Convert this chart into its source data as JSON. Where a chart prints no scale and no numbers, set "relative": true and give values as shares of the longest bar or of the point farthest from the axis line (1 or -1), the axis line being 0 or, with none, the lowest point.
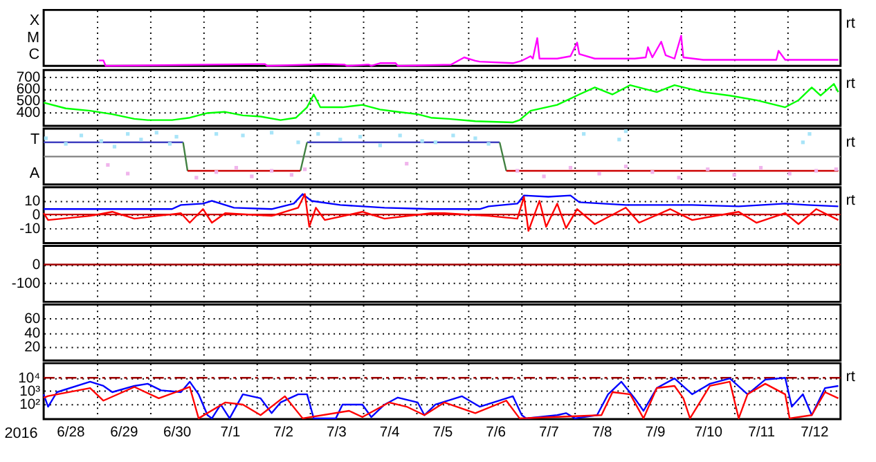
{
  "chart_data": [
    {
      "type": "line",
      "relative": true,
      "grid": "x",
      "tick_labels": false,
      "annotations": [
        "X",
        "M",
        "C",
        "rt"
      ],
      "xlim": [
        "2016-06-28T00:00",
        "2016-07-13T00:00"
      ],
      "xticks": [
        {
          "value": "2016-06-29T00:00",
          "label": null
        },
        {
          "value": "2016-06-30T00:00",
          "label": null
        },
        {
          "value": "2016-07-01T00:00",
          "label": null
        },
        {
          "value": "2016-07-02T00:00",
          "label": null
        },
        {
          "value": "2016-07-03T00:00",
          "label": null
        },
        {
          "value": "2016-07-04T00:00",
          "label": null
        },
        {
          "value": "2016-07-05T00:00",
          "label": null
        },
        {
          "value": "2016-07-06T00:00",
          "label": null
        },
        {
          "value": "2016-07-07T00:00",
          "label": null
        },
        {
          "value": "2016-07-08T00:00",
          "label": null
        },
        {
          "value": "2016-07-09T00:00",
          "label": null
        },
        {
          "value": "2016-07-10T00:00",
          "label": null
        },
        {
          "value": "2016-07-11T00:00",
          "label": null
        },
        {
          "value": "2016-07-12T00:00",
          "label": null
        }
      ],
      "series": [
        {
          "color": "#ff00ff",
          "x": [
            "2016-06-29T01:00",
            "2016-06-29T03:00",
            "2016-06-29T04:00",
            "2016-07-02T02:00",
            "2016-07-02T04:00",
            "2016-07-02T05:00",
            "2016-07-03T07:00",
            "2016-07-03T16:00",
            "2016-07-03T17:00",
            "2016-07-04T02:00",
            "2016-07-04T03:00",
            "2016-07-04T04:00",
            "2016-07-04T08:00",
            "2016-07-04T15:00",
            "2016-07-04T16:00",
            "2016-07-05T16:00",
            "2016-07-05T22:00",
            "2016-07-06T03:00",
            "2016-07-06T05:00",
            "2016-07-06T20:00",
            "2016-07-07T00:00",
            "2016-07-07T04:00",
            "2016-07-07T05:00",
            "2016-07-07T07:00",
            "2016-07-07T08:00",
            "2016-07-07T16:00",
            "2016-07-07T22:00",
            "2016-07-08T01:00",
            "2016-07-08T02:00",
            "2016-07-08T09:00",
            "2016-07-08T17:00",
            "2016-07-09T03:00",
            "2016-07-09T08:00",
            "2016-07-09T09:00",
            "2016-07-09T11:00",
            "2016-07-09T15:00",
            "2016-07-09T17:00",
            "2016-07-09T21:00",
            "2016-07-10T00:00",
            "2016-07-10T01:00",
            "2016-07-10T10:00",
            "2016-07-11T00:00",
            "2016-07-11T19:00",
            "2016-07-11T20:00",
            "2016-07-11T23:00",
            "2016-07-12T11:00",
            "2016-07-12T23:00"
          ],
          "values": [
            0.18,
            0.18,
            0,
            0.06,
            0.06,
            0,
            0.06,
            0.04,
            0,
            0.04,
            0.04,
            0,
            0.09,
            0.09,
            0,
            0.04,
            0.28,
            0.17,
            0.14,
            0.09,
            0.17,
            0.32,
            0.24,
            0.92,
            0.24,
            0.24,
            0.32,
            0.77,
            0.39,
            0.24,
            0.24,
            0.24,
            0.28,
            0.62,
            0.28,
            0.8,
            0.35,
            0.24,
            1,
            0.28,
            0.2,
            0.2,
            0.2,
            0.5,
            0.2,
            0.2,
            0.2
          ]
        }
      ]
    },
    {
      "type": "line",
      "grid": true,
      "tick_labels": "y",
      "annotations": [
        "rt"
      ],
      "xlim": [
        "2016-06-28T00:00",
        "2016-07-13T00:00"
      ],
      "xticks": [
        {
          "value": "2016-06-29T00:00",
          "label": null
        },
        {
          "value": "2016-06-30T00:00",
          "label": null
        },
        {
          "value": "2016-07-01T00:00",
          "label": null
        },
        {
          "value": "2016-07-02T00:00",
          "label": null
        },
        {
          "value": "2016-07-03T00:00",
          "label": null
        },
        {
          "value": "2016-07-04T00:00",
          "label": null
        },
        {
          "value": "2016-07-05T00:00",
          "label": null
        },
        {
          "value": "2016-07-06T00:00",
          "label": null
        },
        {
          "value": "2016-07-07T00:00",
          "label": null
        },
        {
          "value": "2016-07-08T00:00",
          "label": null
        },
        {
          "value": "2016-07-09T00:00",
          "label": null
        },
        {
          "value": "2016-07-10T00:00",
          "label": null
        },
        {
          "value": "2016-07-11T00:00",
          "label": null
        },
        {
          "value": "2016-07-12T00:00",
          "label": null
        }
      ],
      "ylim": [
        280,
        760
      ],
      "yticks": [
        400,
        500,
        600,
        700
      ],
      "series": [
        {
          "color": "#00ff00",
          "x": [
            "2016-06-28T00:00",
            "2016-06-28T10:00",
            "2016-06-28T21:00",
            "2016-06-29T07:00",
            "2016-06-29T17:00",
            "2016-06-29T23:00",
            "2016-06-30T10:00",
            "2016-06-30T18:00",
            "2016-07-01T02:00",
            "2016-07-01T10:00",
            "2016-07-01T18:00",
            "2016-07-02T02:00",
            "2016-07-02T11:00",
            "2016-07-02T18:00",
            "2016-07-02T23:00",
            "2016-07-03T02:00",
            "2016-07-03T05:00",
            "2016-07-03T15:00",
            "2016-07-04T00:00",
            "2016-07-04T08:00",
            "2016-07-04T16:00",
            "2016-07-05T01:00",
            "2016-07-05T07:00",
            "2016-07-05T15:00",
            "2016-07-06T03:00",
            "2016-07-06T20:00",
            "2016-07-06T23:00",
            "2016-07-07T04:00",
            "2016-07-07T16:00",
            "2016-07-08T02:00",
            "2016-07-08T09:00",
            "2016-07-08T17:00",
            "2016-07-09T01:00",
            "2016-07-09T13:00",
            "2016-07-09T21:00",
            "2016-07-10T10:00",
            "2016-07-10T22:00",
            "2016-07-11T10:00",
            "2016-07-11T23:00",
            "2016-07-12T05:00",
            "2016-07-12T11:00",
            "2016-07-12T15:00",
            "2016-07-12T21:00",
            "2016-07-12T23:00"
          ],
          "values": [
            480,
            430,
            410,
            380,
            340,
            330,
            330,
            350,
            390,
            400,
            370,
            360,
            330,
            350,
            440,
            550,
            440,
            440,
            460,
            420,
            400,
            380,
            350,
            340,
            320,
            310,
            330,
            410,
            460,
            550,
            610,
            550,
            630,
            570,
            630,
            570,
            540,
            500,
            440,
            500,
            610,
            540,
            640,
            570
          ]
        }
      ]
    },
    {
      "type": "scatter",
      "relative": true,
      "grid": "x",
      "tick_labels": false,
      "annotations": [
        "T",
        "A",
        "rt"
      ],
      "xlim": [
        "2016-06-28T00:00",
        "2016-07-13T00:00"
      ],
      "xticks": [
        {
          "value": "2016-06-29T00:00",
          "label": null
        },
        {
          "value": "2016-06-30T00:00",
          "label": null
        },
        {
          "value": "2016-07-01T00:00",
          "label": null
        },
        {
          "value": "2016-07-02T00:00",
          "label": null
        },
        {
          "value": "2016-07-03T00:00",
          "label": null
        },
        {
          "value": "2016-07-04T00:00",
          "label": null
        },
        {
          "value": "2016-07-05T00:00",
          "label": null
        },
        {
          "value": "2016-07-06T00:00",
          "label": null
        },
        {
          "value": "2016-07-07T00:00",
          "label": null
        },
        {
          "value": "2016-07-08T00:00",
          "label": null
        },
        {
          "value": "2016-07-09T00:00",
          "label": null
        },
        {
          "value": "2016-07-10T00:00",
          "label": null
        },
        {
          "value": "2016-07-11T00:00",
          "label": null
        },
        {
          "value": "2016-07-12T00:00",
          "label": null
        }
      ],
      "ref_lines": [
        {
          "axis": "y",
          "value": 0,
          "color": "#808080"
        }
      ],
      "series": [
        {
          "color": "#a8e4f8",
          "x": [
            "2016-06-28T01:00",
            "2016-06-28T10:00",
            "2016-06-28T17:00",
            "2016-06-29T02:00",
            "2016-06-29T08:00",
            "2016-06-29T14:00",
            "2016-06-29T20:00",
            "2016-06-30T03:00",
            "2016-06-30T09:00",
            "2016-06-30T12:00",
            "2016-07-01T06:00",
            "2016-07-01T18:00",
            "2016-07-02T07:00",
            "2016-07-02T19:00",
            "2016-07-03T04:00",
            "2016-07-03T14:00",
            "2016-07-03T23:00",
            "2016-07-04T08:00",
            "2016-07-04T17:00",
            "2016-07-05T03:00",
            "2016-07-05T09:00",
            "2016-07-05T17:00",
            "2016-07-06T03:00",
            "2016-07-06T09:00",
            "2016-07-08T04:00",
            "2016-07-08T20:00",
            "2016-07-08T23:00",
            "2016-07-12T07:00",
            "2016-07-12T10:00"
          ],
          "values": [
            0.72,
            0.5,
            0.83,
            0.61,
            0.39,
            0.89,
            0.67,
            0.94,
            0.5,
            0.78,
            0.89,
            0.83,
            0.94,
            0.56,
            0.89,
            0.67,
            0.78,
            0.44,
            0.83,
            0.61,
            0.56,
            0.83,
            0.72,
            0.5,
            0.89,
            0.67,
            1,
            0.56,
            0.89
          ]
        },
        {
          "color": "#f0b4ec",
          "x": [
            "2016-06-29T05:00",
            "2016-06-29T14:00",
            "2016-06-30T21:00",
            "2016-07-01T06:00",
            "2016-07-01T15:00",
            "2016-07-01T22:00",
            "2016-07-02T07:00",
            "2016-07-02T16:00",
            "2016-07-02T22:00",
            "2016-07-04T20:00",
            "2016-07-06T22:00",
            "2016-07-07T10:00",
            "2016-07-07T22:00",
            "2016-07-08T11:00",
            "2016-07-08T23:00",
            "2016-07-09T11:00",
            "2016-07-09T23:00",
            "2016-07-10T12:00",
            "2016-07-11T00:00",
            "2016-07-11T12:00",
            "2016-07-12T01:00",
            "2016-07-12T13:00",
            "2016-07-12T22:00"
          ],
          "values": [
            -0.33,
            -0.67,
            -0.83,
            -0.61,
            -0.44,
            -0.78,
            -0.56,
            -0.72,
            -0.5,
            -0.28,
            -0.56,
            -0.78,
            -0.44,
            -0.67,
            -0.39,
            -0.61,
            -0.83,
            -0.5,
            -0.72,
            -0.44,
            -0.67,
            -0.56,
            -0.5
          ]
        },
        {
          "type": "line",
          "color": "#4040c0",
          "x": [
            "2016-06-28T00:00",
            "2016-06-30T15:00",
            "2016-06-30T16:00",
            "2016-07-02T23:00",
            "2016-07-06T14:00"
          ],
          "values": [
            0.56,
            0.56,
            null,
            0.56,
            0.56
          ]
        },
        {
          "type": "line",
          "color": "#408040",
          "x": [
            "2016-06-30T15:00",
            "2016-06-30T17:00",
            "2016-06-30T18:00",
            "2016-07-02T20:00",
            "2016-07-02T23:00",
            "2016-07-03T00:00",
            "2016-07-06T14:00",
            "2016-07-06T17:00"
          ],
          "values": [
            0.56,
            -0.56,
            null,
            -0.56,
            0.56,
            null,
            0.56,
            -0.56
          ]
        },
        {
          "type": "line",
          "color": "#cc0000",
          "x": [
            "2016-06-30T17:00",
            "2016-07-02T20:00",
            "2016-07-02T21:00",
            "2016-07-06T17:00",
            "2016-07-12T23:00"
          ],
          "values": [
            -0.56,
            -0.56,
            null,
            -0.56,
            -0.56
          ]
        }
      ]
    },
    {
      "type": "line",
      "grid": true,
      "tick_labels": "y",
      "annotations": [
        "rt"
      ],
      "xlim": [
        "2016-06-28T00:00",
        "2016-07-13T00:00"
      ],
      "xticks": [
        {
          "value": "2016-06-29T00:00",
          "label": null
        },
        {
          "value": "2016-06-30T00:00",
          "label": null
        },
        {
          "value": "2016-07-01T00:00",
          "label": null
        },
        {
          "value": "2016-07-02T00:00",
          "label": null
        },
        {
          "value": "2016-07-03T00:00",
          "label": null
        },
        {
          "value": "2016-07-04T00:00",
          "label": null
        },
        {
          "value": "2016-07-05T00:00",
          "label": null
        },
        {
          "value": "2016-07-06T00:00",
          "label": null
        },
        {
          "value": "2016-07-07T00:00",
          "label": null
        },
        {
          "value": "2016-07-08T00:00",
          "label": null
        },
        {
          "value": "2016-07-09T00:00",
          "label": null
        },
        {
          "value": "2016-07-10T00:00",
          "label": null
        },
        {
          "value": "2016-07-11T00:00",
          "label": null
        },
        {
          "value": "2016-07-12T00:00",
          "label": null
        }
      ],
      "ylim": [
        -21,
        20
      ],
      "yticks": [
        10,
        0,
        -10
      ],
      "ref_lines": [
        {
          "axis": "y",
          "value": 0,
          "color": "#cc0000"
        }
      ],
      "series": [
        {
          "color": "#0000ff",
          "x": [
            "2016-06-28T00:00",
            "2016-06-28T21:00",
            "2016-06-29T17:00",
            "2016-06-30T10:00",
            "2016-06-30T14:00",
            "2016-07-01T00:00",
            "2016-07-01T04:00",
            "2016-07-01T14:00",
            "2016-07-02T07:00",
            "2016-07-02T17:00",
            "2016-07-02T21:00",
            "2016-07-03T01:00",
            "2016-07-03T14:00",
            "2016-07-04T10:00",
            "2016-07-05T07:00",
            "2016-07-06T05:00",
            "2016-07-06T09:00",
            "2016-07-06T22:00",
            "2016-07-07T01:00",
            "2016-07-07T12:00",
            "2016-07-07T22:00",
            "2016-07-08T02:00",
            "2016-07-08T23:00",
            "2016-07-10T05:00",
            "2016-07-11T02:00",
            "2016-07-11T23:00",
            "2016-07-12T09:00",
            "2016-07-12T23:00"
          ],
          "values": [
            4,
            4,
            4,
            4,
            7,
            8,
            10,
            5,
            4,
            8,
            15,
            10,
            7,
            5,
            4,
            4,
            6,
            8,
            14,
            13,
            14,
            9,
            7,
            7,
            6,
            8,
            7,
            6
          ]
        },
        {
          "color": "#ff0000",
          "x": [
            "2016-06-28T00:00",
            "2016-06-28T02:00",
            "2016-06-28T21:00",
            "2016-06-29T07:00",
            "2016-06-29T17:00",
            "2016-06-30T14:00",
            "2016-06-30T18:00",
            "2016-07-01T00:00",
            "2016-07-01T04:00",
            "2016-07-01T10:00",
            "2016-07-02T07:00",
            "2016-07-02T19:00",
            "2016-07-02T22:00",
            "2016-07-03T00:00",
            "2016-07-03T03:00",
            "2016-07-03T07:00",
            "2016-07-04T00:00",
            "2016-07-04T10:00",
            "2016-07-05T07:00",
            "2016-07-05T13:00",
            "2016-07-06T09:00",
            "2016-07-06T22:00",
            "2016-07-07T01:00",
            "2016-07-07T03:00",
            "2016-07-07T08:00",
            "2016-07-07T11:00",
            "2016-07-07T16:00",
            "2016-07-07T20:00",
            "2016-07-08T01:00",
            "2016-07-08T09:00",
            "2016-07-08T23:00",
            "2016-07-09T05:00",
            "2016-07-09T19:00",
            "2016-07-10T05:00",
            "2016-07-11T02:00",
            "2016-07-11T10:00",
            "2016-07-11T23:00",
            "2016-07-12T05:00",
            "2016-07-12T13:00",
            "2016-07-12T23:00"
          ],
          "values": [
            1,
            -4,
            -1,
            2,
            -3,
            1,
            -6,
            4,
            -6,
            1,
            -1,
            5,
            15,
            -9,
            5,
            -4,
            2,
            -3,
            1,
            1,
            -1,
            -3,
            13,
            -12,
            10,
            -9,
            8,
            -10,
            4,
            -7,
            5,
            -6,
            4,
            -4,
            2,
            -6,
            1,
            -7,
            4,
            -4
          ]
        }
      ]
    },
    {
      "type": "line",
      "grid": true,
      "tick_labels": "y",
      "xlim": [
        "2016-06-28T00:00",
        "2016-07-13T00:00"
      ],
      "xticks": [
        {
          "value": "2016-06-29T00:00",
          "label": null
        },
        {
          "value": "2016-06-30T00:00",
          "label": null
        },
        {
          "value": "2016-07-01T00:00",
          "label": null
        },
        {
          "value": "2016-07-02T00:00",
          "label": null
        },
        {
          "value": "2016-07-03T00:00",
          "label": null
        },
        {
          "value": "2016-07-04T00:00",
          "label": null
        },
        {
          "value": "2016-07-05T00:00",
          "label": null
        },
        {
          "value": "2016-07-06T00:00",
          "label": null
        },
        {
          "value": "2016-07-07T00:00",
          "label": null
        },
        {
          "value": "2016-07-08T00:00",
          "label": null
        },
        {
          "value": "2016-07-09T00:00",
          "label": null
        },
        {
          "value": "2016-07-10T00:00",
          "label": null
        },
        {
          "value": "2016-07-11T00:00",
          "label": null
        },
        {
          "value": "2016-07-12T00:00",
          "label": null
        }
      ],
      "ylim": [
        -200,
        100
      ],
      "yticks": [
        0,
        -100
      ],
      "ref_lines": [
        {
          "axis": "y",
          "value": 0,
          "color": "#a00000"
        }
      ]
    },
    {
      "type": "line",
      "grid": true,
      "tick_labels": "y",
      "xlim": [
        "2016-06-28T00:00",
        "2016-07-13T00:00"
      ],
      "xticks": [
        {
          "value": "2016-06-29T00:00",
          "label": null
        },
        {
          "value": "2016-06-30T00:00",
          "label": null
        },
        {
          "value": "2016-07-01T00:00",
          "label": null
        },
        {
          "value": "2016-07-02T00:00",
          "label": null
        },
        {
          "value": "2016-07-03T00:00",
          "label": null
        },
        {
          "value": "2016-07-04T00:00",
          "label": null
        },
        {
          "value": "2016-07-05T00:00",
          "label": null
        },
        {
          "value": "2016-07-06T00:00",
          "label": null
        },
        {
          "value": "2016-07-07T00:00",
          "label": null
        },
        {
          "value": "2016-07-08T00:00",
          "label": null
        },
        {
          "value": "2016-07-09T00:00",
          "label": null
        },
        {
          "value": "2016-07-10T00:00",
          "label": null
        },
        {
          "value": "2016-07-11T00:00",
          "label": null
        },
        {
          "value": "2016-07-12T00:00",
          "label": null
        }
      ],
      "ylim": [
        0,
        80
      ],
      "yticks": [
        60,
        40,
        20
      ]
    },
    {
      "type": "line",
      "log": true,
      "grid": true,
      "annotations": [
        "rt"
      ],
      "xlabel": "2016",
      "xlim": [
        "2016-06-28T00:00",
        "2016-07-13T00:00"
      ],
      "xticks": [
        {
          "value": "2016-06-28T12:00",
          "label": "6/28"
        },
        {
          "value": "2016-06-29T00:00",
          "label": null
        },
        {
          "value": "2016-06-29T12:00",
          "label": "6/29"
        },
        {
          "value": "2016-06-30T00:00",
          "label": null
        },
        {
          "value": "2016-06-30T12:00",
          "label": "6/30"
        },
        {
          "value": "2016-07-01T00:00",
          "label": null
        },
        {
          "value": "2016-07-01T12:00",
          "label": "7/1"
        },
        {
          "value": "2016-07-02T00:00",
          "label": null
        },
        {
          "value": "2016-07-02T12:00",
          "label": "7/2"
        },
        {
          "value": "2016-07-03T00:00",
          "label": null
        },
        {
          "value": "2016-07-03T12:00",
          "label": "7/3"
        },
        {
          "value": "2016-07-04T00:00",
          "label": null
        },
        {
          "value": "2016-07-04T12:00",
          "label": "7/4"
        },
        {
          "value": "2016-07-05T00:00",
          "label": null
        },
        {
          "value": "2016-07-05T12:00",
          "label": "7/5"
        },
        {
          "value": "2016-07-06T00:00",
          "label": null
        },
        {
          "value": "2016-07-06T12:00",
          "label": "7/6"
        },
        {
          "value": "2016-07-07T00:00",
          "label": null
        },
        {
          "value": "2016-07-07T12:00",
          "label": "7/7"
        },
        {
          "value": "2016-07-08T00:00",
          "label": null
        },
        {
          "value": "2016-07-08T12:00",
          "label": "7/8"
        },
        {
          "value": "2016-07-09T00:00",
          "label": null
        },
        {
          "value": "2016-07-09T12:00",
          "label": "7/9"
        },
        {
          "value": "2016-07-10T00:00",
          "label": null
        },
        {
          "value": "2016-07-10T12:00",
          "label": "7/10"
        },
        {
          "value": "2016-07-11T00:00",
          "label": null
        },
        {
          "value": "2016-07-11T12:00",
          "label": "7/11"
        },
        {
          "value": "2016-07-12T00:00",
          "label": null
        },
        {
          "value": "2016-07-12T12:00",
          "label": "7/12"
        }
      ],
      "ylim": [
        7,
        130000
      ],
      "yticks": [
        {
          "value": 10000,
          "label": "10⁴"
        },
        {
          "value": 1000,
          "label": "10³"
        },
        {
          "value": 100,
          "label": "10²"
        }
      ],
      "ref_lines": [
        {
          "axis": "y",
          "value": 10000,
          "color": "#a00000",
          "line_style": "dashed"
        }
      ],
      "series": [
        {
          "color": "#0000ff",
          "x": [
            "2016-06-28T00:00",
            "2016-06-28T02:00",
            "2016-06-28T06:00",
            "2016-06-28T21:00",
            "2016-06-29T03:00",
            "2016-06-29T07:00",
            "2016-06-29T17:00",
            "2016-06-29T23:00",
            "2016-06-30T05:00",
            "2016-06-30T14:00",
            "2016-06-30T18:00",
            "2016-06-30T22:00",
            "2016-07-01T02:00",
            "2016-07-01T04:00",
            "2016-07-01T08:00",
            "2016-07-01T12:00",
            "2016-07-01T18:00",
            "2016-07-02T02:00",
            "2016-07-02T07:00",
            "2016-07-02T11:00",
            "2016-07-02T19:00",
            "2016-07-02T23:00",
            "2016-07-03T02:00",
            "2016-07-03T12:00",
            "2016-07-03T15:00",
            "2016-07-04T00:00",
            "2016-07-04T04:00",
            "2016-07-04T10:00",
            "2016-07-04T16:00",
            "2016-07-05T01:00",
            "2016-07-05T04:00",
            "2016-07-05T09:00",
            "2016-07-05T21:00",
            "2016-07-06T05:00",
            "2016-07-06T20:00",
            "2016-07-07T00:00",
            "2016-07-07T02:00",
            "2016-07-07T16:00",
            "2016-07-07T20:00",
            "2016-07-08T00:00",
            "2016-07-08T10:00",
            "2016-07-08T15:00",
            "2016-07-08T21:00",
            "2016-07-09T03:00",
            "2016-07-09T07:00",
            "2016-07-09T13:00",
            "2016-07-09T21:00",
            "2016-07-10T05:00",
            "2016-07-10T13:00",
            "2016-07-10T22:00",
            "2016-07-11T06:00",
            "2016-07-11T14:00",
            "2016-07-11T23:00",
            "2016-07-12T02:00",
            "2016-07-12T07:00",
            "2016-07-12T11:00",
            "2016-07-12T17:00",
            "2016-07-12T23:00"
          ],
          "values": [
            550,
            62,
            800,
            5000,
            2400,
            800,
            2400,
            3500,
            1100,
            800,
            5000,
            550,
            14,
            8,
            90,
            8,
            550,
            270,
            20,
            130,
            550,
            550,
            8,
            8,
            90,
            90,
            10,
            90,
            310,
            130,
            14,
            90,
            390,
            62,
            390,
            14,
            8,
            14,
            20,
            8,
            14,
            550,
            5000,
            270,
            30,
            1650,
            9000,
            550,
            3500,
            9000,
            550,
            7200,
            10000,
            62,
            550,
            14,
            1650,
            2400
          ]
        },
        {
          "color": "#ff0000",
          "x": [
            "2016-06-28T00:00",
            "2016-06-28T02:00",
            "2016-06-28T21:00",
            "2016-06-29T03:00",
            "2016-06-29T17:00",
            "2016-06-30T04:00",
            "2016-06-30T18:00",
            "2016-06-30T22:00",
            "2016-07-01T10:00",
            "2016-07-01T18:00",
            "2016-07-02T02:00",
            "2016-07-02T13:00",
            "2016-07-02T21:00",
            "2016-07-03T18:00",
            "2016-07-04T00:00",
            "2016-07-04T12:00",
            "2016-07-04T20:00",
            "2016-07-05T04:00",
            "2016-07-05T13:00",
            "2016-07-06T03:00",
            "2016-07-06T17:00",
            "2016-07-06T23:00",
            "2016-07-08T12:00",
            "2016-07-08T17:00",
            "2016-07-09T01:00",
            "2016-07-09T07:00",
            "2016-07-09T13:00",
            "2016-07-09T21:00",
            "2016-07-10T01:00",
            "2016-07-10T04:00",
            "2016-07-10T13:00",
            "2016-07-10T22:00",
            "2016-07-11T02:00",
            "2016-07-11T06:00",
            "2016-07-11T14:00",
            "2016-07-11T23:00",
            "2016-07-12T01:00",
            "2016-07-12T11:00",
            "2016-07-12T17:00",
            "2016-07-12T23:00"
          ],
          "values": [
            300,
            400,
            1650,
            180,
            2000,
            270,
            2000,
            8,
            130,
            90,
            14,
            390,
            8,
            30,
            10,
            130,
            62,
            14,
            130,
            20,
            180,
            8,
            14,
            800,
            550,
            8,
            1650,
            2400,
            270,
            8,
            2400,
            5000,
            8,
            550,
            3500,
            550,
            8,
            14,
            800,
            270
          ]
        }
      ]
    }
  ]
}
